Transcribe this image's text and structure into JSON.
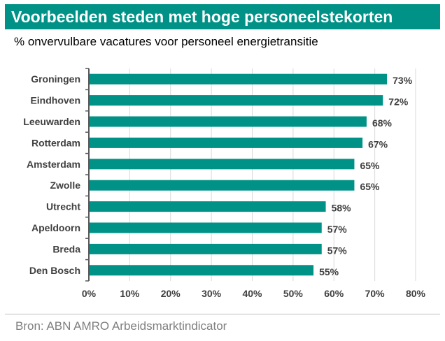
{
  "title": "Voorbeelden steden met hoge personeelstekorten",
  "subtitle": "% onvervulbare vacatures voor personeel energietransitie",
  "source": "Bron: ABN AMRO Arbeidsmarktindicator",
  "colors": {
    "accent": "#009286",
    "grid": "#d9d9d9",
    "axis": "#595959",
    "label": "#404040"
  },
  "chart_data": {
    "type": "bar",
    "orientation": "horizontal",
    "title": "% onvervulbare vacatures voor personeel energietransitie",
    "categories": [
      "Groningen",
      "Eindhoven",
      "Leeuwarden",
      "Rotterdam",
      "Amsterdam",
      "Zwolle",
      "Utrecht",
      "Apeldoorn",
      "Breda",
      "Den Bosch"
    ],
    "values": [
      73,
      72,
      68,
      67,
      65,
      65,
      58,
      57,
      57,
      55
    ],
    "value_labels": [
      "73%",
      "72%",
      "68%",
      "67%",
      "65%",
      "65%",
      "58%",
      "57%",
      "57%",
      "55%"
    ],
    "xlim": [
      0,
      80
    ],
    "x_ticks": [
      0,
      10,
      20,
      30,
      40,
      50,
      60,
      70,
      80
    ],
    "x_tick_labels": [
      "0%",
      "10%",
      "20%",
      "30%",
      "40%",
      "50%",
      "60%",
      "70%",
      "80%"
    ],
    "xlabel": "",
    "ylabel": "",
    "grid": true,
    "legend": "none"
  }
}
